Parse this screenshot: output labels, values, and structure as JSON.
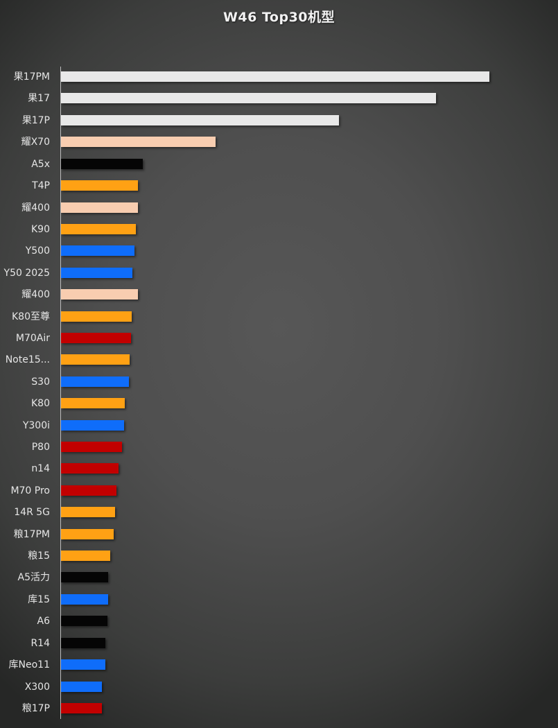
{
  "title": "W46 Top30机型",
  "colors": {
    "apple": "#e8e8e8",
    "honor_like": "#f8cdb0",
    "black": "#050505",
    "orange": "#ffa114",
    "blue": "#0f6dfa",
    "red": "#c20000"
  },
  "chart_data": {
    "type": "bar",
    "orientation": "horizontal",
    "title": "W46 Top30机型",
    "xlabel": "",
    "ylabel": "",
    "grid": false,
    "legend": null,
    "note": "No numeric axis shown; values are relative bar lengths in pixels",
    "categories": [
      "果17PM",
      "果17",
      "果17P",
      "耀X70",
      "A5x",
      "T4P",
      "耀400",
      "K90",
      "Y500",
      "Y50 2025",
      "耀400",
      "K80至尊",
      "M70Air",
      "Note15...",
      "S30",
      "K80",
      "Y300i",
      "P80",
      "n14",
      "M70 Pro",
      "14R 5G",
      "粮17PM",
      "粮15",
      "A5活力",
      "库15",
      "A6",
      "R14",
      "库Neo11",
      "X300",
      "粮17P"
    ],
    "values": [
      618,
      541,
      401,
      223,
      118,
      111,
      111,
      108,
      106,
      103,
      111,
      102,
      101,
      99,
      98,
      92,
      91,
      88,
      83,
      80,
      78,
      76,
      71,
      68,
      68,
      67,
      64,
      64,
      59,
      59
    ],
    "bar_colors": [
      "#e8e8e8",
      "#e8e8e8",
      "#e8e8e8",
      "#f8cdb0",
      "#050505",
      "#ffa114",
      "#f8cdb0",
      "#ffa114",
      "#0f6dfa",
      "#0f6dfa",
      "#f8cdb0",
      "#ffa114",
      "#c20000",
      "#ffa114",
      "#0f6dfa",
      "#ffa114",
      "#0f6dfa",
      "#c20000",
      "#c20000",
      "#c20000",
      "#ffa114",
      "#ffa114",
      "#ffa114",
      "#050505",
      "#0f6dfa",
      "#050505",
      "#050505",
      "#0f6dfa",
      "#0f6dfa",
      "#c20000"
    ]
  }
}
